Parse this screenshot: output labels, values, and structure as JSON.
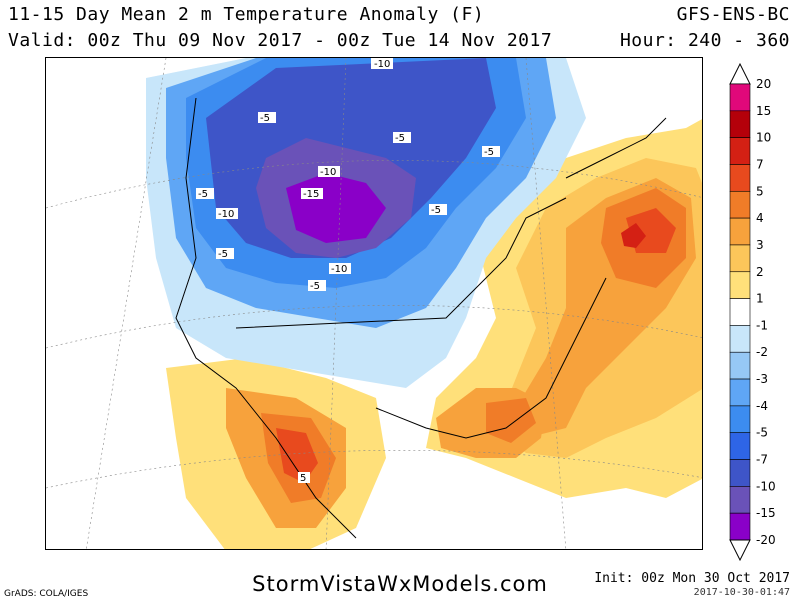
{
  "header": {
    "title": "11-15 Day Mean 2 m Temperature Anomaly (F)",
    "valid": "Valid: 00z Thu 09 Nov 2017 - 00z Tue 14 Nov 2017",
    "model": "GFS-ENS-BC",
    "hour": "Hour: 240 - 360"
  },
  "map": {
    "contour_labels": [
      "-10",
      "-5",
      "-5",
      "-5",
      "-5",
      "-10",
      "-15",
      "-10",
      "-5",
      "-5",
      "-10",
      "-5",
      "5"
    ],
    "colors": {
      "ocean_white": "#ffffff",
      "minus20": "#8a00c8",
      "minus15": "#6a52b8",
      "minus10": "#3e55c8",
      "minus7": "#2e65e6",
      "minus5": "#3c8cf0",
      "minus4": "#5fa6f5",
      "minus3": "#96c8f5",
      "minus2": "#c8e6fa",
      "minus1": "#ffffff",
      "plus1": "#ffe07a",
      "plus2": "#fcc65a",
      "plus3": "#f7a23c",
      "plus4": "#f07c28",
      "plus5": "#e84a1e",
      "plus7": "#d42014"
    }
  },
  "colorbar": {
    "labels": [
      "20",
      "15",
      "10",
      "7",
      "5",
      "4",
      "3",
      "2",
      "1",
      "-1",
      "-2",
      "-3",
      "-4",
      "-5",
      "-7",
      "-10",
      "-15",
      "-20"
    ],
    "colors": [
      "#e0087a",
      "#b4000a",
      "#d42014",
      "#e84a1e",
      "#f07c28",
      "#f7a23c",
      "#fcc65a",
      "#ffe07a",
      "#ffffff",
      "#c8e6fa",
      "#96c8f5",
      "#5fa6f5",
      "#3c8cf0",
      "#2e65e6",
      "#3e55c8",
      "#6a52b8",
      "#8a00c8"
    ]
  },
  "footer": {
    "site": "StormVistaWxModels.com",
    "init": "Init: 00z Mon 30 Oct 2017",
    "stamp": "2017-10-30-01:47",
    "credit": "GrADS: COLA/IGES"
  }
}
